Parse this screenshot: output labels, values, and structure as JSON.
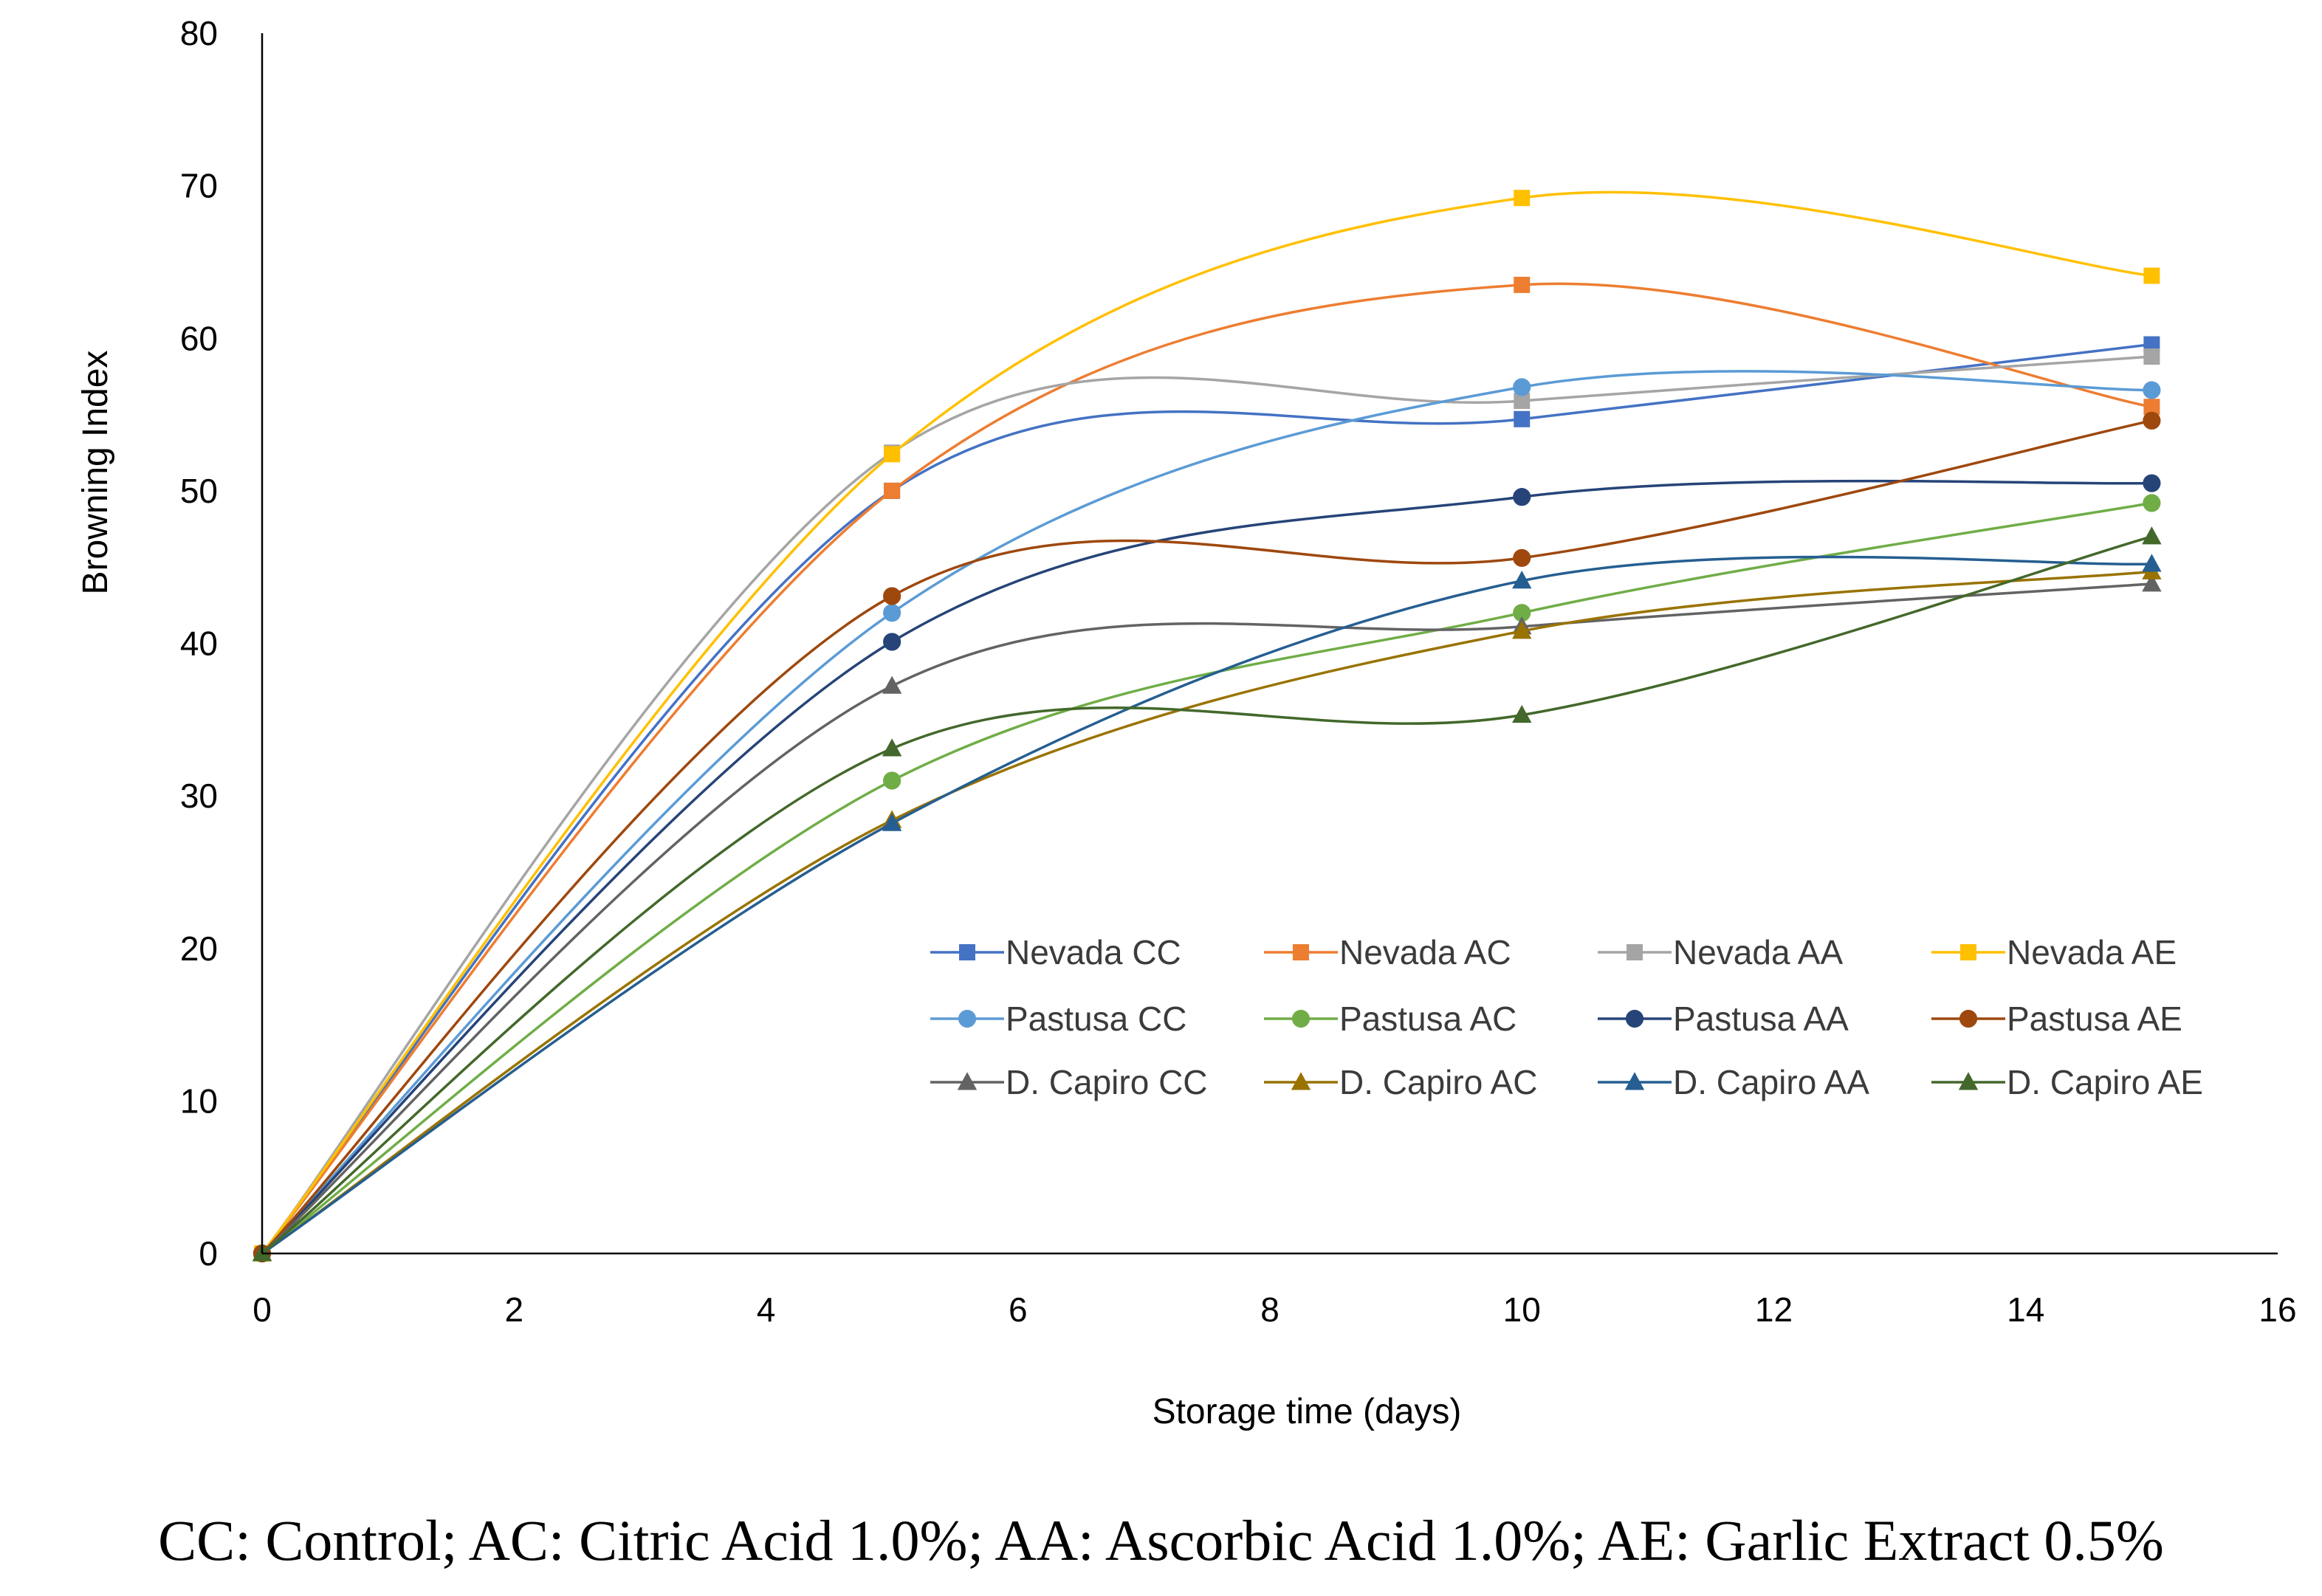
{
  "chart_data": {
    "type": "line",
    "xlabel": "Storage time (days)",
    "ylabel": "Browning Index",
    "xlim": [
      0,
      16
    ],
    "ylim": [
      0,
      80
    ],
    "xticks": [
      "0",
      "2",
      "4",
      "6",
      "8",
      "10",
      "12",
      "14",
      "16"
    ],
    "yticks": [
      "0",
      "10",
      "20",
      "30",
      "40",
      "50",
      "60",
      "70",
      "80"
    ],
    "x": [
      0,
      5,
      10,
      15
    ],
    "grid": false,
    "legend_position": "inside-bottom-right",
    "series": [
      {
        "name": "Nevada CC",
        "color": "#4472C4",
        "marker": "square",
        "values": [
          0,
          50.0,
          54.7,
          59.6
        ]
      },
      {
        "name": "Nevada AC",
        "color": "#ED7D31",
        "marker": "square",
        "values": [
          0,
          50.0,
          63.5,
          55.5
        ]
      },
      {
        "name": "Nevada AA",
        "color": "#A5A5A5",
        "marker": "square",
        "values": [
          0,
          52.5,
          55.9,
          58.8
        ]
      },
      {
        "name": "Nevada AE",
        "color": "#FFC000",
        "marker": "square",
        "values": [
          0,
          52.4,
          69.2,
          64.1
        ]
      },
      {
        "name": "Pastusa CC",
        "color": "#5B9BD5",
        "marker": "circle",
        "values": [
          0,
          42.0,
          56.8,
          56.6
        ]
      },
      {
        "name": "Pastusa AC",
        "color": "#70AD47",
        "marker": "circle",
        "values": [
          0,
          31.0,
          42.0,
          49.2
        ]
      },
      {
        "name": "Pastusa AA",
        "color": "#264478",
        "marker": "circle",
        "values": [
          0,
          40.1,
          49.6,
          50.5
        ]
      },
      {
        "name": "Pastusa AE",
        "color": "#9E480E",
        "marker": "circle",
        "values": [
          0,
          43.1,
          45.6,
          54.6
        ]
      },
      {
        "name": "D. Capiro CC",
        "color": "#636363",
        "marker": "triangle",
        "values": [
          0,
          37.2,
          41.1,
          43.9
        ]
      },
      {
        "name": "D. Capiro AC",
        "color": "#997300",
        "marker": "triangle",
        "values": [
          0,
          28.4,
          40.8,
          44.7
        ]
      },
      {
        "name": "D. Capiro AA",
        "color": "#255E91",
        "marker": "triangle",
        "values": [
          0,
          28.2,
          44.1,
          45.2
        ]
      },
      {
        "name": "D. Capiro AE",
        "color": "#43682B",
        "marker": "triangle",
        "values": [
          0,
          33.1,
          35.3,
          47.0
        ]
      }
    ]
  },
  "caption": "CC: Control; AC: Citric Acid 1.0%; AA: Ascorbic Acid 1.0%; AE: Garlic Extract 0.5%"
}
